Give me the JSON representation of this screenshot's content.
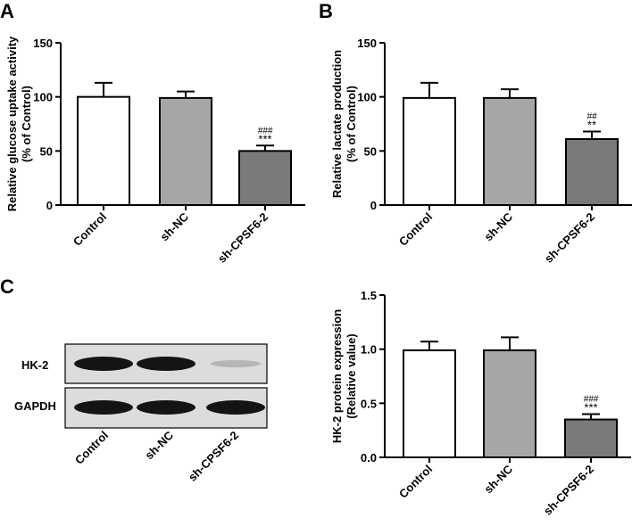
{
  "chart_data": [
    {
      "panel": "A",
      "type": "bar",
      "ylabel_line1": "Relative glucose uptake activity",
      "ylabel_line2": "(% of Control)",
      "ylim": [
        0,
        150
      ],
      "yticks": [
        "0",
        "50",
        "100",
        "150"
      ],
      "categories": [
        "Control",
        "sh-NC",
        "sh-CPSF6-2"
      ],
      "values": [
        100,
        99,
        50
      ],
      "errors": [
        13,
        6,
        5
      ],
      "colors": [
        "#ffffff",
        "#a6a6a6",
        "#7a7a7a"
      ],
      "annotations": [
        "",
        "",
        "***"
      ],
      "annotations2": [
        "",
        "",
        "###"
      ]
    },
    {
      "panel": "B",
      "type": "bar",
      "ylabel_line1": "Relative lactate production",
      "ylabel_line2": "(% of Control)",
      "ylim": [
        0,
        150
      ],
      "yticks": [
        "0",
        "50",
        "100",
        "150"
      ],
      "categories": [
        "Control",
        "sh-NC",
        "sh-CPSF6-2"
      ],
      "values": [
        99,
        99,
        61
      ],
      "errors": [
        14,
        8,
        7
      ],
      "colors": [
        "#ffffff",
        "#a6a6a6",
        "#7a7a7a"
      ],
      "annotations": [
        "",
        "",
        "**"
      ],
      "annotations2": [
        "",
        "",
        "##"
      ]
    },
    {
      "panel": "",
      "type": "bar",
      "ylabel_line1": "HK-2 protein expression",
      "ylabel_line2": "(Relative value)",
      "ylim": [
        0,
        1.5
      ],
      "yticks": [
        "0.0",
        "0.5",
        "1.0",
        "1.5"
      ],
      "categories": [
        "Control",
        "sh-NC",
        "sh-CPSF6-2"
      ],
      "values": [
        0.99,
        0.99,
        0.35
      ],
      "errors": [
        0.08,
        0.12,
        0.05
      ],
      "colors": [
        "#ffffff",
        "#a6a6a6",
        "#7a7a7a"
      ],
      "annotations": [
        "",
        "",
        "***"
      ],
      "annotations2": [
        "",
        "",
        "###"
      ]
    }
  ],
  "blot": {
    "panel": "C",
    "rows": [
      "HK-2",
      "GAPDH"
    ],
    "lanes": [
      "Control",
      "sh-NC",
      "sh-CPSF6-2"
    ],
    "band_intensity": [
      [
        1.0,
        1.0,
        0.25
      ],
      [
        1.0,
        1.0,
        1.0
      ]
    ]
  }
}
